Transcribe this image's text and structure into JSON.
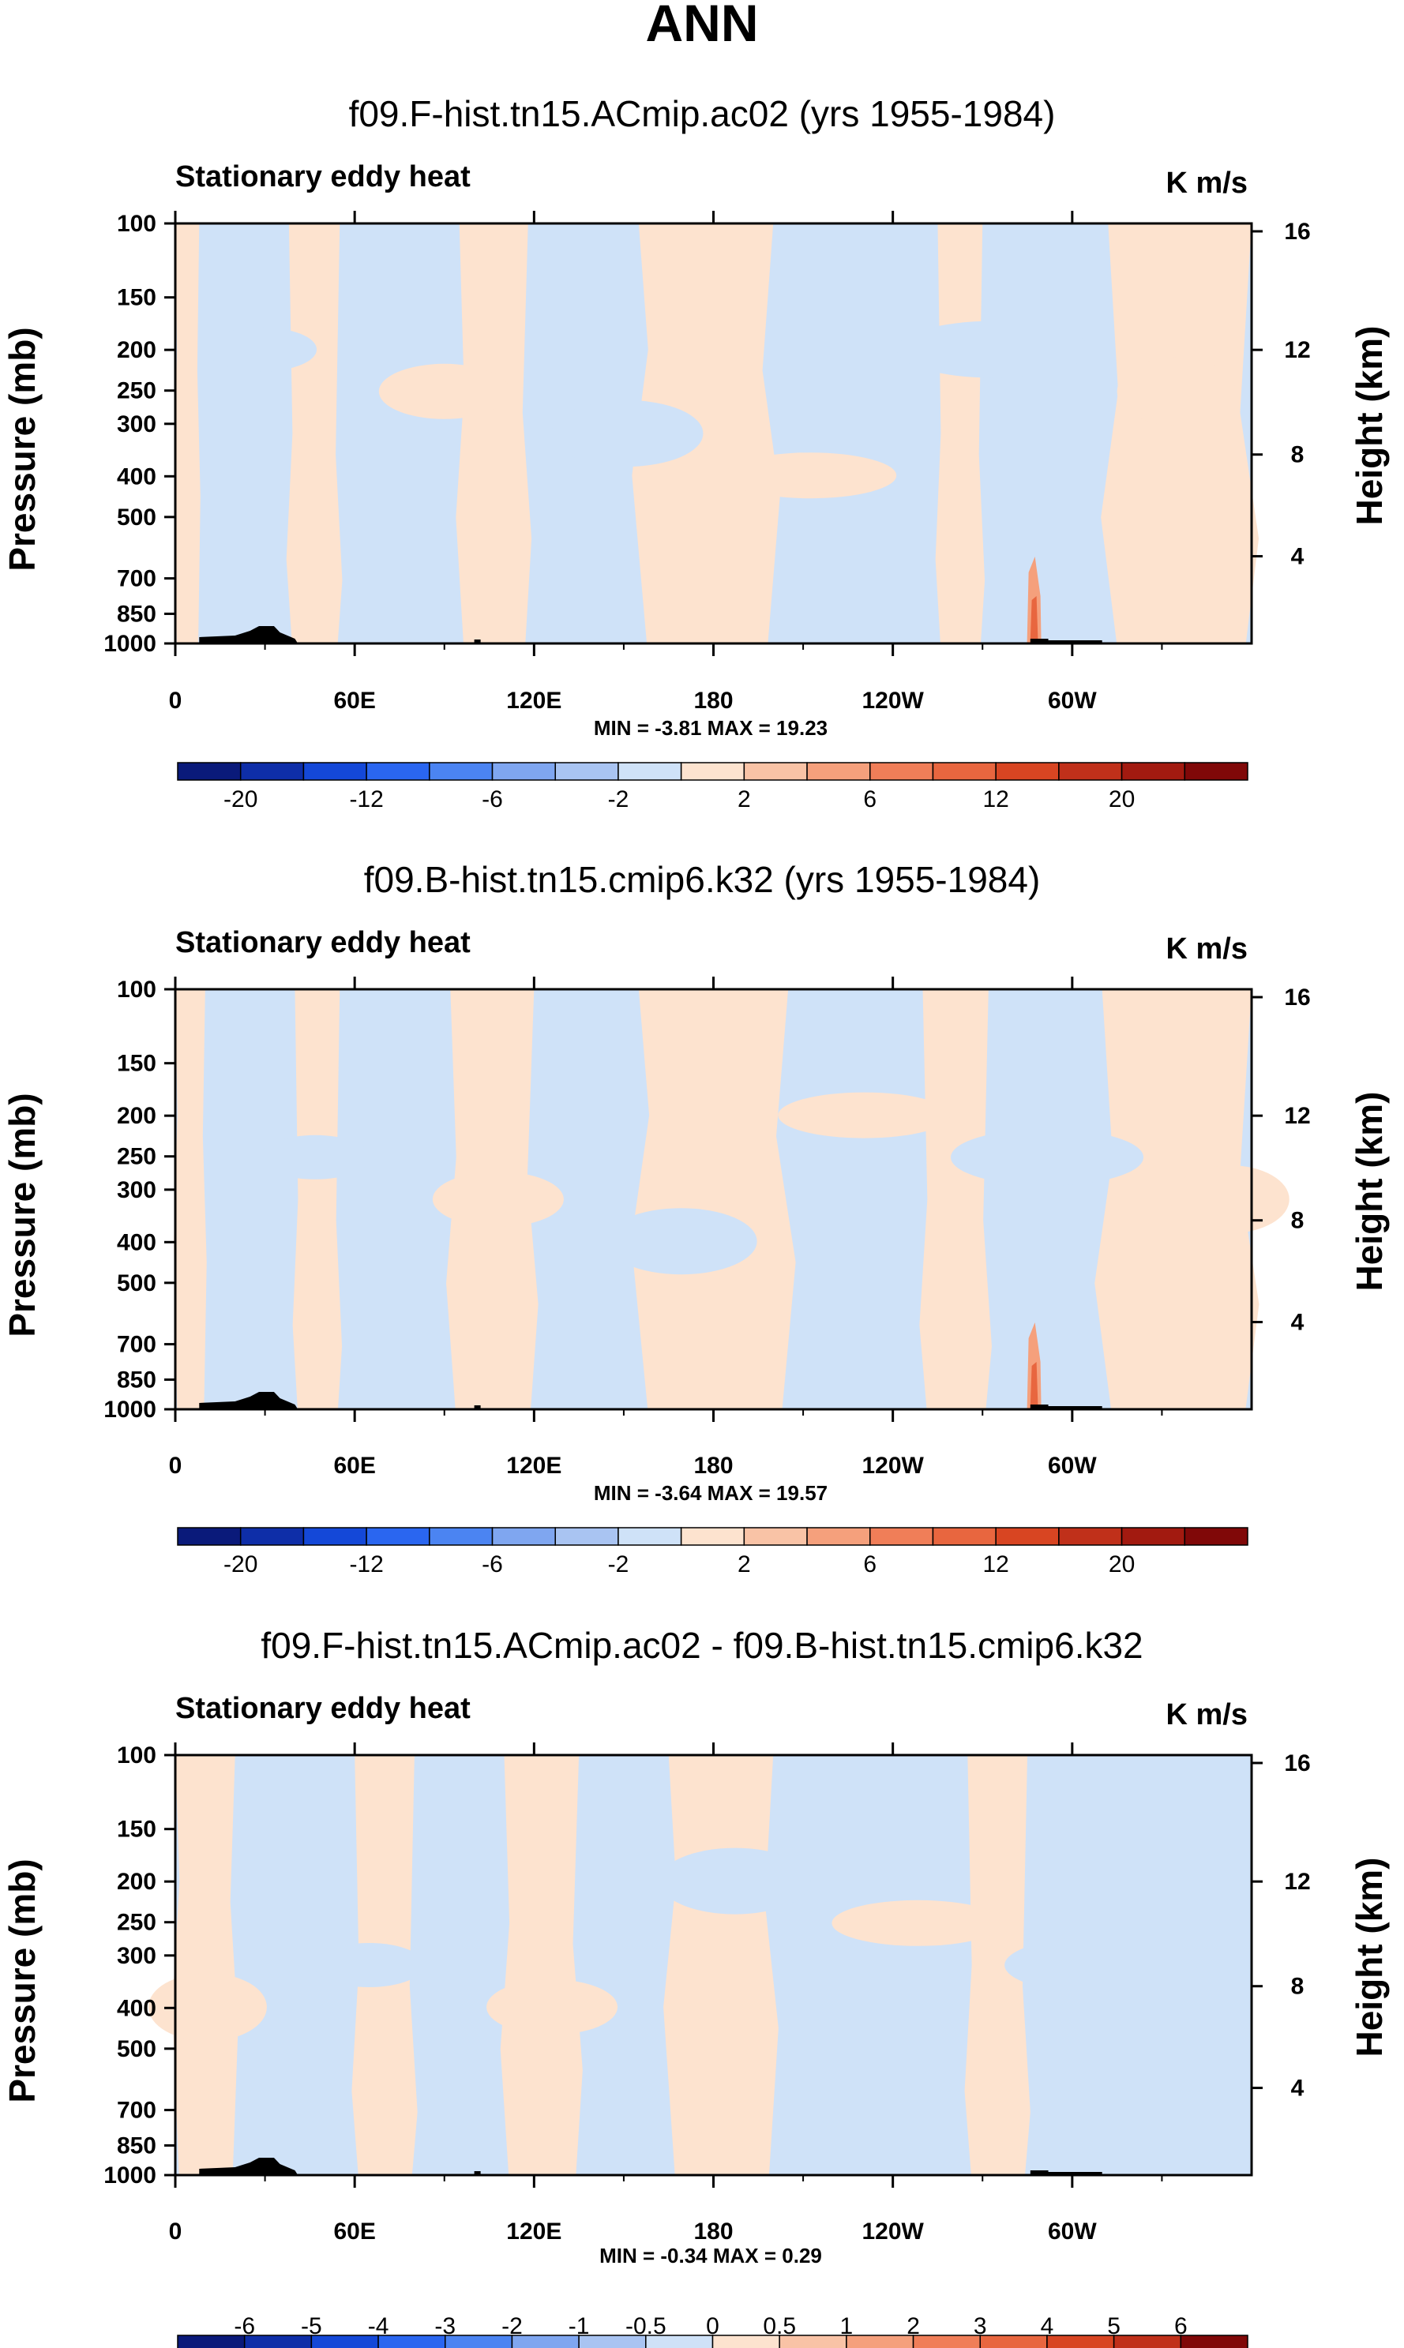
{
  "figure": {
    "title": "ANN"
  },
  "colors": {
    "pos_fill": "#fde3cf",
    "neg_fill": "#cfe2f8",
    "strong_pos": "#e8663f",
    "land": "#000000"
  },
  "chart_data": [
    {
      "type": "heatmap",
      "title": "f09.F-hist.tn15.ACmip.ac02 (yrs 1955-1984)",
      "subtitle_left": "Stationary eddy heat",
      "units": "K m/s",
      "ylabel": "Pressure (mb)",
      "ylabel_right": "Height (km)",
      "x_ticks": [
        "0",
        "60E",
        "120E",
        "180",
        "120W",
        "60W"
      ],
      "y_ticks": [
        "100",
        "150",
        "200",
        "250",
        "300",
        "400",
        "500",
        "700",
        "850",
        "1000"
      ],
      "y_right_ticks": [
        "16",
        "12",
        "8",
        "4"
      ],
      "xlim": [
        0,
        360
      ],
      "ylim_mb": [
        1000,
        100
      ],
      "stats": "MIN = -3.81   MAX = 19.23",
      "colorbar": {
        "labels": [
          "-20",
          "-12",
          "-6",
          "-2",
          "2",
          "6",
          "12",
          "20"
        ],
        "colors": [
          "#0a1a7a",
          "#0e2ea8",
          "#1448d8",
          "#2a66f0",
          "#4b84f2",
          "#7fa6f0",
          "#a9c4f2",
          "#cfe2f8",
          "#fde3cf",
          "#f9c3a6",
          "#f5a07c",
          "#f07e58",
          "#e8663f",
          "#d84522",
          "#c0301a",
          "#a21a10",
          "#800808"
        ]
      },
      "field": [
        [
          0,
          8,
          1
        ],
        [
          8,
          38,
          -1
        ],
        [
          38,
          55,
          1
        ],
        [
          55,
          95,
          -1
        ],
        [
          95,
          118,
          1
        ],
        [
          118,
          155,
          -1
        ],
        [
          155,
          200,
          1
        ],
        [
          200,
          255,
          -1
        ],
        [
          255,
          270,
          1
        ],
        [
          270,
          312,
          -1
        ],
        [
          312,
          360,
          1
        ]
      ],
      "hotspot_lon": 287
    },
    {
      "type": "heatmap",
      "title": "f09.B-hist.tn15.cmip6.k32 (yrs 1955-1984)",
      "subtitle_left": "Stationary eddy heat",
      "units": "K m/s",
      "ylabel": "Pressure (mb)",
      "ylabel_right": "Height (km)",
      "x_ticks": [
        "0",
        "60E",
        "120E",
        "180",
        "120W",
        "60W"
      ],
      "y_ticks": [
        "100",
        "150",
        "200",
        "250",
        "300",
        "400",
        "500",
        "700",
        "850",
        "1000"
      ],
      "y_right_ticks": [
        "16",
        "12",
        "8",
        "4"
      ],
      "xlim": [
        0,
        360
      ],
      "ylim_mb": [
        1000,
        100
      ],
      "stats": "MIN = -3.64   MAX = 19.57",
      "colorbar": {
        "labels": [
          "-20",
          "-12",
          "-6",
          "-2",
          "2",
          "6",
          "12",
          "20"
        ],
        "colors": [
          "#0a1a7a",
          "#0e2ea8",
          "#1448d8",
          "#2a66f0",
          "#4b84f2",
          "#7fa6f0",
          "#a9c4f2",
          "#cfe2f8",
          "#fde3cf",
          "#f9c3a6",
          "#f5a07c",
          "#f07e58",
          "#e8663f",
          "#d84522",
          "#c0301a",
          "#a21a10",
          "#800808"
        ]
      },
      "field": [
        [
          0,
          10,
          1
        ],
        [
          10,
          40,
          -1
        ],
        [
          40,
          55,
          1
        ],
        [
          55,
          92,
          -1
        ],
        [
          92,
          120,
          1
        ],
        [
          120,
          155,
          -1
        ],
        [
          155,
          205,
          1
        ],
        [
          205,
          250,
          -1
        ],
        [
          250,
          272,
          1
        ],
        [
          272,
          310,
          -1
        ],
        [
          310,
          360,
          1
        ]
      ],
      "hotspot_lon": 287
    },
    {
      "type": "heatmap",
      "title": "f09.F-hist.tn15.ACmip.ac02 - f09.B-hist.tn15.cmip6.k32",
      "subtitle_left": "Stationary eddy heat",
      "units": "K m/s",
      "ylabel": "Pressure (mb)",
      "ylabel_right": "Height (km)",
      "x_ticks": [
        "0",
        "60E",
        "120E",
        "180",
        "120W",
        "60W"
      ],
      "y_ticks": [
        "100",
        "150",
        "200",
        "250",
        "300",
        "400",
        "500",
        "700",
        "850",
        "1000"
      ],
      "y_right_ticks": [
        "16",
        "12",
        "8",
        "4"
      ],
      "xlim": [
        0,
        360
      ],
      "ylim_mb": [
        1000,
        100
      ],
      "stats": "MIN = -0.34   MAX =  0.29",
      "colorbar": {
        "labels": [
          "-6",
          "-5",
          "-4",
          "-3",
          "-2",
          "-1",
          "-0.5",
          "0",
          "0.5",
          "1",
          "2",
          "3",
          "4",
          "5",
          "6"
        ],
        "colors": [
          "#0a1a7a",
          "#0e2ea8",
          "#1448d8",
          "#2a66f0",
          "#4b84f2",
          "#7fa6f0",
          "#a9c4f2",
          "#cfe2f8",
          "#fde3cf",
          "#f9c3a6",
          "#f5a07c",
          "#f07e58",
          "#e8663f",
          "#d84522",
          "#c0301a",
          "#800808"
        ]
      },
      "field": [
        [
          0,
          20,
          1
        ],
        [
          20,
          60,
          -1
        ],
        [
          60,
          80,
          1
        ],
        [
          80,
          110,
          -1
        ],
        [
          110,
          135,
          1
        ],
        [
          135,
          165,
          -1
        ],
        [
          165,
          200,
          1
        ],
        [
          200,
          265,
          -1
        ],
        [
          265,
          285,
          1
        ],
        [
          285,
          360,
          -1
        ]
      ],
      "hotspot_lon": null
    }
  ]
}
